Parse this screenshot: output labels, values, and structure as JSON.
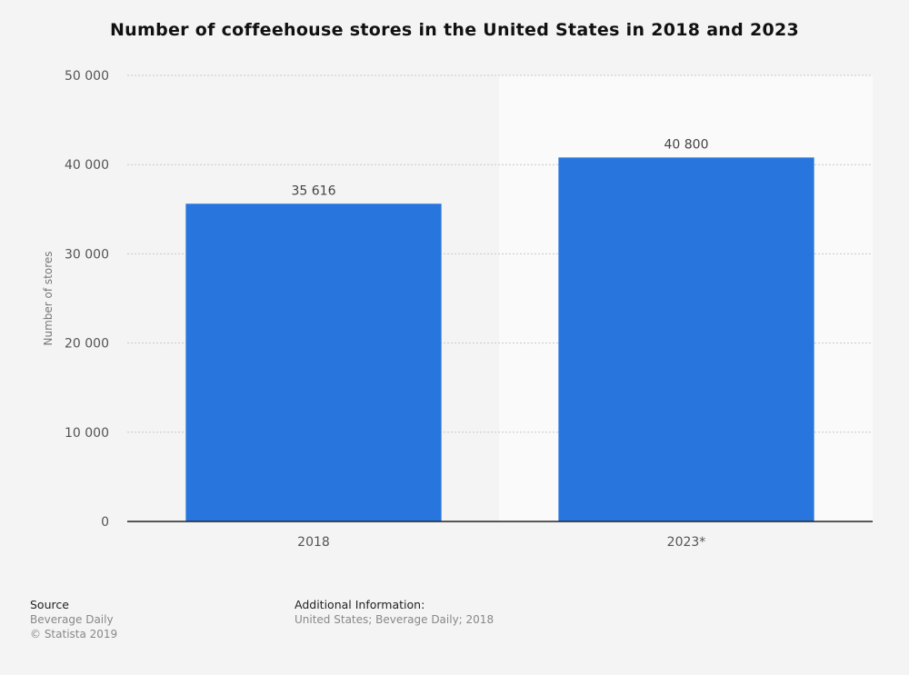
{
  "chart_data": {
    "type": "bar",
    "title": "Number of coffeehouse stores in the United States in 2018 and 2023",
    "categories": [
      "2018",
      "2023*"
    ],
    "values": [
      35616,
      40800
    ],
    "value_labels": [
      "35 616",
      "40 800"
    ],
    "xlabel": "",
    "ylabel": "Number of stores",
    "ylim": [
      0,
      50000
    ],
    "yticks": [
      0,
      10000,
      20000,
      30000,
      40000,
      50000
    ],
    "ytick_labels": [
      "0",
      "10 000",
      "20 000",
      "30 000",
      "40 000",
      "50 000"
    ],
    "grid": true,
    "legend": "none",
    "bar_color": "#2876dd",
    "forecast_shaded_category": "2023*"
  },
  "footer": {
    "source_heading": "Source",
    "source_text": "Beverage Daily",
    "copyright": "© Statista 2019",
    "info_heading": "Additional Information:",
    "info_text": "United States; Beverage Daily; 2018"
  }
}
